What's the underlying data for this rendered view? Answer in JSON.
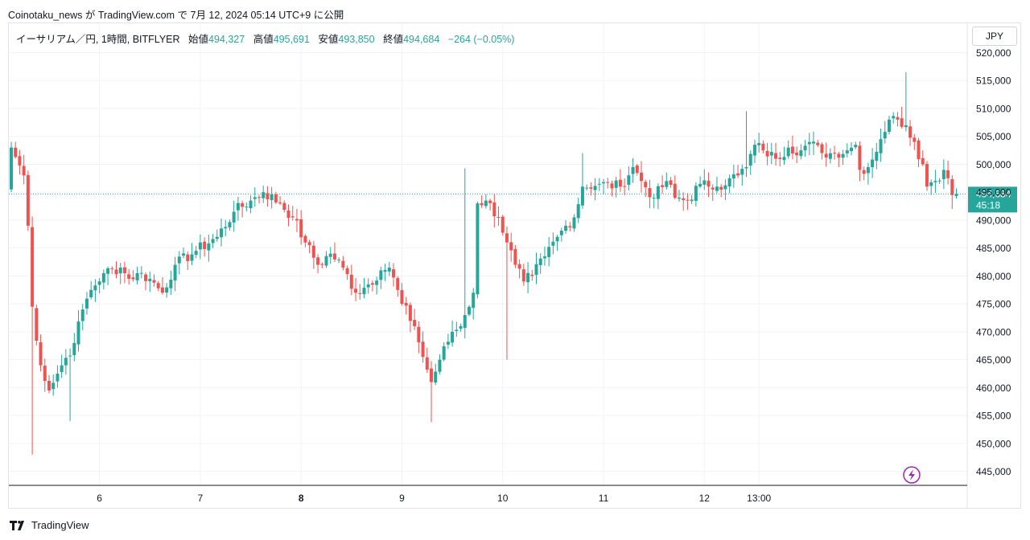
{
  "header": {
    "published_line": "Coinotaku_news が TradingView.com で 7月 12, 2024 05:14 UTC+9 に公開"
  },
  "legend": {
    "symbol": "イーサリアム／円, 1時間, BITFLYER",
    "open_label": "始値",
    "open": "494,327",
    "high_label": "高値",
    "high": "495,691",
    "low_label": "安値",
    "low": "493,850",
    "close_label": "終値",
    "close": "494,684",
    "change": "−264 (−0.05%)"
  },
  "currency_button": "JPY",
  "footer": {
    "brand": "TradingView"
  },
  "colors": {
    "up": "#26a69a",
    "down": "#ef5350",
    "grid": "#f0f3fa",
    "last_price_line": "#26a69a",
    "alert": "#9c27b0"
  },
  "icons": {
    "alert": "lightning-alert-icon",
    "logo": "tradingview-logo-icon"
  },
  "chart_data": {
    "type": "candlestick",
    "title": "イーサリアム／円, 1時間, BITFLYER",
    "xlabel": "",
    "ylabel": "",
    "x_tick_labels": [
      "6",
      "7",
      "8",
      "9",
      "10",
      "11",
      "12",
      "13:00"
    ],
    "y_tick_labels": [
      "445,000",
      "450,000",
      "455,000",
      "460,000",
      "465,000",
      "470,000",
      "475,000",
      "480,000",
      "485,000",
      "490,000",
      "495,000",
      "500,000",
      "505,000",
      "510,000",
      "515,000",
      "520,000"
    ],
    "ylim": [
      442500,
      520500
    ],
    "last_price": {
      "value": 494684,
      "label": "494,684",
      "countdown": "45:18"
    },
    "grid": true,
    "anchor_closes": [
      [
        0,
        503000
      ],
      [
        3,
        498000
      ],
      [
        4,
        489000
      ],
      [
        5,
        474500
      ],
      [
        7,
        464000
      ],
      [
        9,
        459500
      ],
      [
        11,
        462500
      ],
      [
        12,
        464000
      ],
      [
        15,
        468000
      ],
      [
        17,
        474000
      ],
      [
        19,
        477500
      ],
      [
        22,
        480500
      ],
      [
        26,
        481500
      ],
      [
        28,
        479500
      ],
      [
        30,
        480500
      ],
      [
        33,
        479500
      ],
      [
        36,
        477000
      ],
      [
        39,
        482000
      ],
      [
        44,
        484500
      ],
      [
        49,
        487000
      ],
      [
        53,
        491500
      ],
      [
        57,
        493500
      ],
      [
        60,
        495000
      ],
      [
        64,
        493000
      ],
      [
        67,
        490500
      ],
      [
        70,
        486000
      ],
      [
        73,
        482000
      ],
      [
        76,
        484000
      ],
      [
        79,
        481500
      ],
      [
        82,
        477000
      ],
      [
        85,
        478500
      ],
      [
        88,
        481000
      ],
      [
        90,
        481500
      ],
      [
        93,
        475000
      ],
      [
        96,
        471000
      ],
      [
        98,
        465500
      ],
      [
        100,
        461000
      ],
      [
        102,
        465000
      ],
      [
        105,
        470000
      ],
      [
        107,
        471000
      ],
      [
        108,
        473000
      ],
      [
        110,
        477000
      ],
      [
        111,
        493000
      ],
      [
        113,
        493500
      ],
      [
        116,
        490500
      ],
      [
        118,
        486000
      ],
      [
        120,
        482000
      ],
      [
        122,
        479000
      ],
      [
        124,
        480000
      ],
      [
        127,
        483500
      ],
      [
        130,
        487000
      ],
      [
        132,
        489000
      ],
      [
        134,
        490500
      ],
      [
        136,
        496000
      ],
      [
        140,
        496500
      ],
      [
        145,
        496000
      ],
      [
        148,
        499500
      ],
      [
        150,
        497000
      ],
      [
        153,
        494000
      ],
      [
        156,
        497000
      ],
      [
        158,
        494000
      ],
      [
        161,
        493500
      ],
      [
        164,
        496500
      ],
      [
        166,
        496000
      ],
      [
        168,
        496000
      ],
      [
        171,
        497500
      ],
      [
        173,
        498000
      ],
      [
        175,
        499500
      ],
      [
        177,
        503500
      ],
      [
        179,
        502500
      ],
      [
        182,
        501000
      ],
      [
        185,
        503000
      ],
      [
        188,
        502500
      ],
      [
        190,
        504000
      ],
      [
        193,
        502000
      ],
      [
        196,
        502000
      ],
      [
        199,
        502500
      ],
      [
        201,
        503500
      ],
      [
        202,
        499000
      ],
      [
        204,
        499500
      ],
      [
        207,
        504500
      ],
      [
        209,
        508000
      ],
      [
        211,
        508000
      ],
      [
        213,
        507000
      ],
      [
        215,
        504000
      ],
      [
        217,
        500000
      ],
      [
        218,
        496000
      ],
      [
        220,
        497000
      ],
      [
        222,
        499000
      ],
      [
        223,
        497500
      ],
      [
        224,
        494500
      ],
      [
        225,
        494684
      ]
    ],
    "candles": []
  }
}
